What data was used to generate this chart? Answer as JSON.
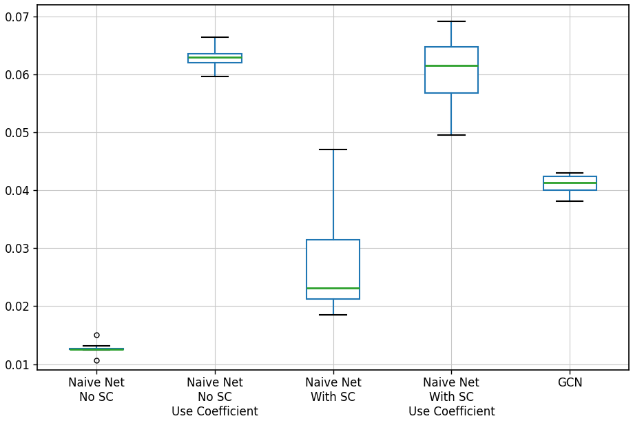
{
  "categories": [
    "Naive Net\nNo SC",
    "Naive Net\nNo SC\nUse Coefficient",
    "Naive Net\nWith SC",
    "Naive Net\nWith SC\nUse Coefficient",
    "GCN"
  ],
  "box_data": [
    {
      "whislo": 0.01245,
      "q1": 0.01252,
      "med": 0.01262,
      "q3": 0.01272,
      "whishi": 0.01315,
      "fliers": [
        0.01505,
        0.01065
      ]
    },
    {
      "whislo": 0.0596,
      "q1": 0.062,
      "med": 0.063,
      "q3": 0.0635,
      "whishi": 0.0664,
      "fliers": []
    },
    {
      "whislo": 0.0185,
      "q1": 0.0212,
      "med": 0.0232,
      "q3": 0.0315,
      "whishi": 0.047,
      "fliers": []
    },
    {
      "whislo": 0.0495,
      "q1": 0.0568,
      "med": 0.0615,
      "q3": 0.0648,
      "whishi": 0.0692,
      "fliers": []
    },
    {
      "whislo": 0.0381,
      "q1": 0.04,
      "med": 0.0413,
      "q3": 0.0424,
      "whishi": 0.043,
      "fliers": []
    }
  ],
  "box_color": "#1f77b4",
  "median_color": "#2ca02c",
  "background_color": "#ffffff",
  "grid_color": "#c8c8c8",
  "ylim": [
    0.009,
    0.072
  ],
  "yticks": [
    0.01,
    0.02,
    0.03,
    0.04,
    0.05,
    0.06,
    0.07
  ],
  "box_width": 0.45,
  "figsize": [
    9.2,
    6.14
  ],
  "dpi": 100,
  "tick_fontsize": 12,
  "label_fontsize": 12
}
